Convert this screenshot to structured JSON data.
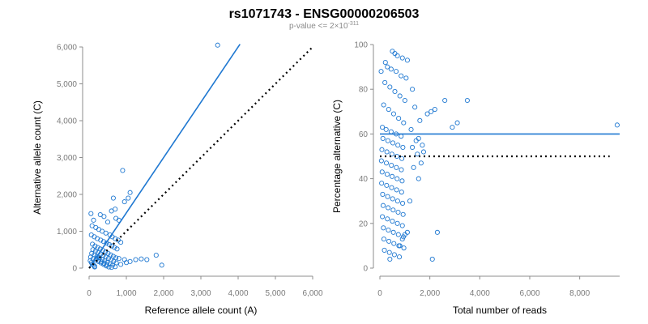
{
  "figure": {
    "title": "rs1071743 - ENSG00000206503",
    "subtitle_prefix": "p-value <= 2×10",
    "subtitle_exponent": "-311"
  },
  "colors": {
    "points": "#1f78d1",
    "fit": "#1f78d1",
    "reference": "#000000",
    "axis": "#8c8c8c",
    "tick_text": "#7a7a7a"
  },
  "chart_data": [
    {
      "type": "scatter",
      "xlabel": "Reference allele count (A)",
      "ylabel": "Alternative allele count (C)",
      "xlim": [
        0,
        6000
      ],
      "ylim": [
        0,
        6000
      ],
      "x_ticks": [
        0,
        1000,
        2000,
        3000,
        4000,
        5000,
        6000
      ],
      "x_tick_labels": [
        "0",
        "1,000",
        "2,000",
        "3,000",
        "4,000",
        "5,000",
        "6,000"
      ],
      "y_ticks": [
        0,
        1000,
        2000,
        3000,
        4000,
        5000,
        6000
      ],
      "y_tick_labels": [
        "0",
        "1,000",
        "2,000",
        "3,000",
        "4,000",
        "5,000",
        "6,000"
      ],
      "grid": false,
      "fit_line": {
        "slope": 1.5,
        "intercept": 0,
        "x_range": [
          0,
          4050
        ]
      },
      "reference_line": {
        "slope": 1,
        "intercept": 0,
        "x_range": [
          0,
          6000
        ],
        "style": "dotted"
      },
      "points": [
        [
          3450,
          6050
        ],
        [
          900,
          2650
        ],
        [
          1100,
          2050
        ],
        [
          1050,
          1900
        ],
        [
          950,
          1800
        ],
        [
          650,
          1900
        ],
        [
          700,
          1600
        ],
        [
          600,
          1550
        ],
        [
          720,
          1350
        ],
        [
          800,
          1300
        ],
        [
          50,
          1480
        ],
        [
          120,
          1300
        ],
        [
          300,
          1450
        ],
        [
          400,
          1400
        ],
        [
          500,
          1250
        ],
        [
          80,
          1150
        ],
        [
          180,
          1100
        ],
        [
          260,
          1050
        ],
        [
          350,
          1000
        ],
        [
          450,
          950
        ],
        [
          560,
          900
        ],
        [
          620,
          850
        ],
        [
          700,
          800
        ],
        [
          780,
          760
        ],
        [
          850,
          700
        ],
        [
          60,
          900
        ],
        [
          140,
          850
        ],
        [
          220,
          800
        ],
        [
          310,
          760
        ],
        [
          390,
          720
        ],
        [
          470,
          680
        ],
        [
          540,
          640
        ],
        [
          610,
          600
        ],
        [
          680,
          560
        ],
        [
          750,
          520
        ],
        [
          90,
          650
        ],
        [
          160,
          600
        ],
        [
          230,
          560
        ],
        [
          300,
          520
        ],
        [
          370,
          480
        ],
        [
          440,
          440
        ],
        [
          510,
          400
        ],
        [
          580,
          360
        ],
        [
          650,
          320
        ],
        [
          720,
          280
        ],
        [
          100,
          500
        ],
        [
          170,
          460
        ],
        [
          240,
          420
        ],
        [
          310,
          380
        ],
        [
          380,
          340
        ],
        [
          450,
          300
        ],
        [
          520,
          260
        ],
        [
          590,
          220
        ],
        [
          660,
          180
        ],
        [
          730,
          140
        ],
        [
          70,
          400
        ],
        [
          140,
          360
        ],
        [
          210,
          320
        ],
        [
          280,
          280
        ],
        [
          350,
          240
        ],
        [
          420,
          200
        ],
        [
          490,
          160
        ],
        [
          560,
          120
        ],
        [
          630,
          80
        ],
        [
          700,
          40
        ],
        [
          40,
          300
        ],
        [
          110,
          260
        ],
        [
          180,
          220
        ],
        [
          250,
          180
        ],
        [
          320,
          140
        ],
        [
          390,
          100
        ],
        [
          460,
          60
        ],
        [
          530,
          30
        ],
        [
          600,
          20
        ],
        [
          150,
          30
        ],
        [
          30,
          200
        ],
        [
          60,
          150
        ],
        [
          90,
          110
        ],
        [
          120,
          80
        ],
        [
          150,
          50
        ],
        [
          200,
          250
        ],
        [
          260,
          210
        ],
        [
          330,
          170
        ],
        [
          400,
          130
        ],
        [
          470,
          90
        ],
        [
          1800,
          350
        ],
        [
          1950,
          80
        ],
        [
          1400,
          250
        ],
        [
          1550,
          230
        ],
        [
          1250,
          230
        ],
        [
          1000,
          150
        ],
        [
          850,
          100
        ],
        [
          950,
          230
        ],
        [
          1100,
          180
        ],
        [
          800,
          260
        ]
      ]
    },
    {
      "type": "scatter",
      "xlabel": "Total number of reads",
      "ylabel": "Percentage alternative (C)",
      "xlim": [
        0,
        9600
      ],
      "ylim": [
        0,
        100
      ],
      "x_ticks": [
        0,
        2000,
        4000,
        6000,
        8000
      ],
      "x_tick_labels": [
        "0",
        "2,000",
        "4,000",
        "6,000",
        "8,000"
      ],
      "y_ticks": [
        0,
        20,
        40,
        60,
        80,
        100
      ],
      "y_tick_labels": [
        "0",
        "20",
        "40",
        "60",
        "80",
        "100"
      ],
      "grid": false,
      "fit_line": {
        "y": 60,
        "x_range": [
          0,
          9600
        ]
      },
      "reference_line": {
        "y": 50,
        "x_range": [
          0,
          9200
        ],
        "style": "dotted"
      },
      "points": [
        [
          9500,
          64
        ],
        [
          3500,
          75
        ],
        [
          3100,
          65
        ],
        [
          2900,
          63
        ],
        [
          2600,
          75
        ],
        [
          2300,
          16
        ],
        [
          2100,
          4
        ],
        [
          2200,
          71
        ],
        [
          2050,
          70
        ],
        [
          1900,
          69
        ],
        [
          1750,
          52
        ],
        [
          1650,
          47
        ],
        [
          1500,
          51
        ],
        [
          1550,
          58
        ],
        [
          1300,
          54
        ],
        [
          1200,
          30
        ],
        [
          1100,
          16
        ],
        [
          1000,
          15
        ],
        [
          900,
          13
        ],
        [
          800,
          10
        ],
        [
          500,
          97
        ],
        [
          600,
          96
        ],
        [
          700,
          95
        ],
        [
          900,
          94
        ],
        [
          1100,
          93
        ],
        [
          300,
          90
        ],
        [
          450,
          89
        ],
        [
          650,
          88
        ],
        [
          850,
          86
        ],
        [
          1050,
          85
        ],
        [
          200,
          83
        ],
        [
          400,
          81
        ],
        [
          600,
          79
        ],
        [
          800,
          77
        ],
        [
          1000,
          75
        ],
        [
          150,
          73
        ],
        [
          350,
          71
        ],
        [
          550,
          69
        ],
        [
          750,
          67
        ],
        [
          950,
          65
        ],
        [
          100,
          63
        ],
        [
          250,
          62
        ],
        [
          450,
          61
        ],
        [
          650,
          60
        ],
        [
          850,
          59
        ],
        [
          120,
          58
        ],
        [
          320,
          57
        ],
        [
          520,
          56
        ],
        [
          720,
          55
        ],
        [
          920,
          54
        ],
        [
          80,
          53
        ],
        [
          280,
          52
        ],
        [
          480,
          51
        ],
        [
          680,
          50
        ],
        [
          880,
          49
        ],
        [
          60,
          48
        ],
        [
          260,
          47
        ],
        [
          460,
          46
        ],
        [
          660,
          45
        ],
        [
          860,
          44
        ],
        [
          90,
          43
        ],
        [
          290,
          42
        ],
        [
          490,
          41
        ],
        [
          690,
          40
        ],
        [
          890,
          39
        ],
        [
          70,
          38
        ],
        [
          270,
          37
        ],
        [
          470,
          36
        ],
        [
          670,
          35
        ],
        [
          870,
          34
        ],
        [
          110,
          33
        ],
        [
          310,
          32
        ],
        [
          510,
          31
        ],
        [
          710,
          30
        ],
        [
          910,
          29
        ],
        [
          130,
          28
        ],
        [
          330,
          27
        ],
        [
          530,
          26
        ],
        [
          730,
          25
        ],
        [
          930,
          24
        ],
        [
          100,
          23
        ],
        [
          300,
          22
        ],
        [
          500,
          21
        ],
        [
          700,
          20
        ],
        [
          900,
          19
        ],
        [
          140,
          18
        ],
        [
          340,
          17
        ],
        [
          540,
          16
        ],
        [
          740,
          15
        ],
        [
          940,
          14
        ],
        [
          160,
          13
        ],
        [
          360,
          12
        ],
        [
          560,
          11
        ],
        [
          760,
          10
        ],
        [
          960,
          9
        ],
        [
          180,
          8
        ],
        [
          380,
          7
        ],
        [
          580,
          6
        ],
        [
          780,
          5
        ],
        [
          400,
          4
        ],
        [
          50,
          88
        ],
        [
          220,
          92
        ],
        [
          1300,
          80
        ],
        [
          1400,
          72
        ],
        [
          1600,
          66
        ],
        [
          1250,
          62
        ],
        [
          1450,
          57
        ],
        [
          1700,
          55
        ],
        [
          1350,
          45
        ],
        [
          1550,
          40
        ]
      ]
    }
  ]
}
